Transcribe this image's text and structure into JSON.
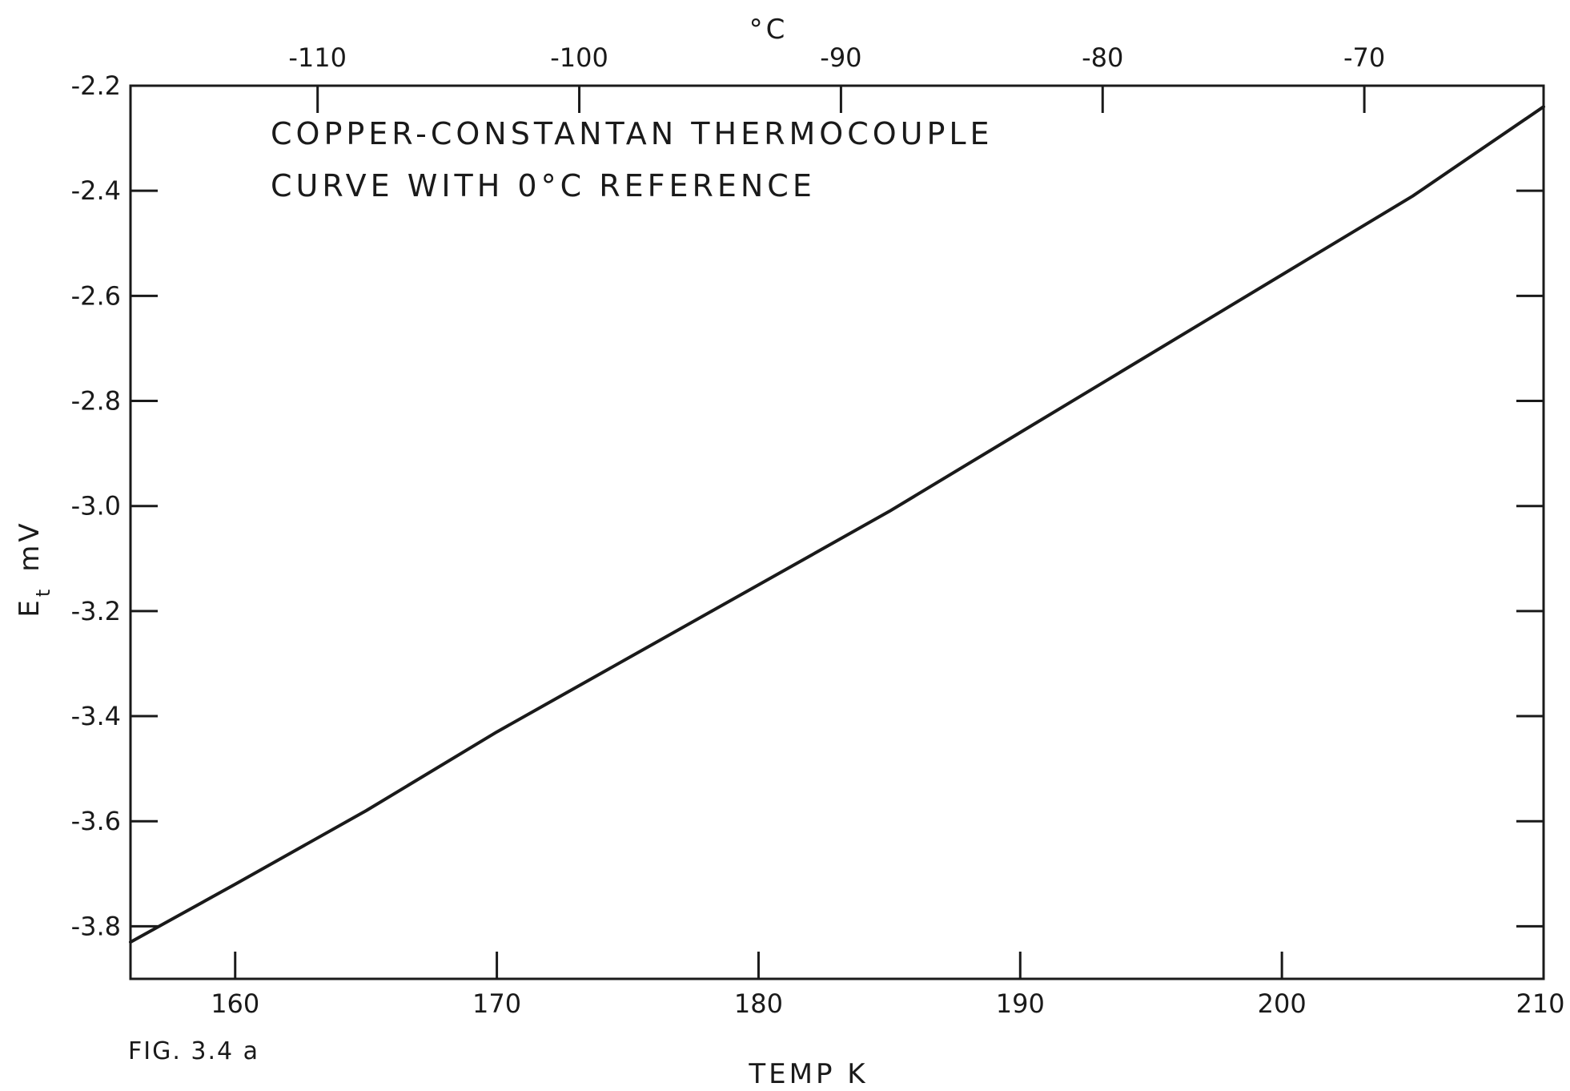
{
  "chart_data": {
    "type": "line",
    "title_lines": [
      "COPPER-CONSTANTAN  THERMOCOUPLE",
      "CURVE  WITH  0°C  REFERENCE"
    ],
    "xlabel": "TEMP  K",
    "ylabel": "E",
    "ylabel_subscript": "t",
    "ylabel_unit": "mV",
    "x2label": "°C",
    "figure_label": "FIG. 3.4 a",
    "xlim": [
      156,
      210
    ],
    "ylim": [
      -3.9,
      -2.2
    ],
    "x_ticks": [
      160,
      170,
      180,
      190,
      200,
      210
    ],
    "x_tick_labels": [
      "160",
      "170",
      "180",
      "190",
      "200",
      "210"
    ],
    "y_ticks": [
      -2.2,
      -2.4,
      -2.6,
      -2.8,
      -3.0,
      -3.2,
      -3.4,
      -3.6,
      -3.8
    ],
    "y_tick_labels": [
      "-2.2",
      "-2.4",
      "-2.6",
      "-2.8",
      "-3.0",
      "-3.2",
      "-3.4",
      "-3.6",
      "-3.8"
    ],
    "x2_ticks": [
      -110,
      -100,
      -90,
      -80,
      -70
    ],
    "x2_tick_labels": [
      "-110",
      "-100",
      "-90",
      "-80",
      "-70"
    ],
    "grid": false,
    "series": [
      {
        "x": [
          156,
          160,
          165,
          170,
          175,
          180,
          185,
          190,
          195,
          200,
          205,
          210
        ],
        "y": [
          -3.83,
          -3.72,
          -3.58,
          -3.43,
          -3.29,
          -3.15,
          -3.01,
          -2.86,
          -2.71,
          -2.56,
          -2.41,
          -2.24
        ]
      }
    ],
    "colors": {
      "ink": "#1a1a1a",
      "background": "#ffffff"
    }
  }
}
